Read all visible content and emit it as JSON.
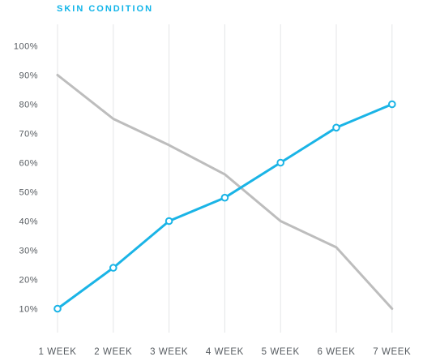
{
  "chart_data": {
    "type": "line",
    "title": "SKIN CONDITION",
    "xlabel": "",
    "ylabel": "",
    "categories": [
      "1 WEEK",
      "2 WEEK",
      "3 WEEK",
      "4 WEEK",
      "5 WEEK",
      "6 WEEK",
      "7 WEEK"
    ],
    "y_ticks": [
      "10%",
      "20%",
      "30%",
      "40%",
      "50%",
      "60%",
      "70%",
      "80%",
      "90%",
      "100%"
    ],
    "ylim": [
      0,
      100
    ],
    "grid": "vertical",
    "legend": "none",
    "series": [
      {
        "color": "#bdbdbd",
        "values": [
          90,
          75,
          66,
          56,
          40,
          31,
          10
        ],
        "markers": false
      },
      {
        "color": "#1ab4e6",
        "values": [
          10,
          24,
          40,
          48,
          60,
          72,
          80
        ],
        "markers": true
      }
    ]
  }
}
